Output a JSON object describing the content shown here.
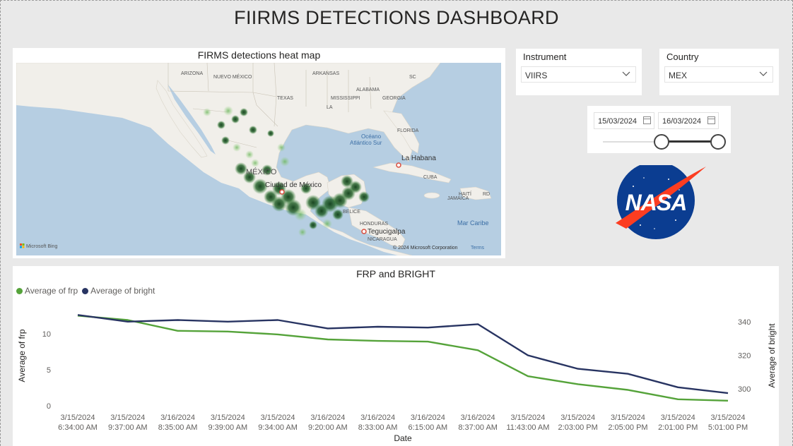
{
  "dashboard": {
    "title": "FIIRMS DETECTIONS DASHBOARD"
  },
  "map": {
    "title": "FIRMS detections heat map",
    "labels": {
      "arizona": "ARIZONA",
      "nuevo_mexico": "NUEVO MÉXICO",
      "arkansas": "ARKANSAS",
      "sc": "SC",
      "texas": "TEXAS",
      "mississippi": "MISSISSIPPI",
      "alabama": "ALABAMA",
      "georgia": "GEORGIA",
      "la": "LA",
      "florida": "FLORIDA",
      "oceano": "Océano",
      "atlantico": "Atlántico Sur",
      "la_habana": "La Habana",
      "mexico": "MÉXICO",
      "ciudad_mexico": "Ciudad de México",
      "cuba": "CUBA",
      "haiti": "HAITÍ",
      "rd": "RD",
      "jamaica": "JAMAICA",
      "belice": "BELICE",
      "honduras": "HONDURAS",
      "tegucigalpa": "Tegucigalpa",
      "nicaragua": "NICARAGUA",
      "mar_caribe": "Mar Caribe"
    },
    "bing_logo": "Microsoft Bing",
    "copyright": "© 2024 Microsoft Corporation",
    "terms": "Terms"
  },
  "instrument": {
    "label": "Instrument",
    "value": "VIIRS"
  },
  "country": {
    "label": "Country",
    "value": "MEX"
  },
  "date_range": {
    "start": "15/03/2024",
    "end": "16/03/2024"
  },
  "logo": {
    "text": "NASA"
  },
  "colors": {
    "frp": "#55a33a",
    "bright": "#283462",
    "ocean": "#b4cde2",
    "land": "#f1efea"
  },
  "chart_data": {
    "type": "line",
    "title": "FRP and BRIGHT",
    "xlabel": "Date",
    "ylabel": "Average of frp",
    "y2label": "Average of bright",
    "categories": [
      [
        "3/15/2024",
        "6:34:00 AM"
      ],
      [
        "3/15/2024",
        "9:37:00 AM"
      ],
      [
        "3/16/2024",
        "8:35:00 AM"
      ],
      [
        "3/15/2024",
        "9:39:00 AM"
      ],
      [
        "3/15/2024",
        "9:34:00 AM"
      ],
      [
        "3/16/2024",
        "9:20:00 AM"
      ],
      [
        "3/16/2024",
        "8:33:00 AM"
      ],
      [
        "3/16/2024",
        "6:15:00 AM"
      ],
      [
        "3/16/2024",
        "8:37:00 AM"
      ],
      [
        "3/15/2024",
        "11:43:00 AM"
      ],
      [
        "3/15/2024",
        "2:03:00 PM"
      ],
      [
        "3/15/2024",
        "2:05:00 PM"
      ],
      [
        "3/15/2024",
        "2:01:00 PM"
      ],
      [
        "3/15/2024",
        "5:01:00 PM"
      ]
    ],
    "series": [
      {
        "name": "Average of frp",
        "axis": "left",
        "values": [
          12.5,
          11.9,
          10.4,
          10.3,
          9.9,
          9.2,
          9.0,
          8.9,
          7.7,
          4.1,
          3.0,
          2.2,
          0.9,
          0.7
        ]
      },
      {
        "name": "Average of bright",
        "axis": "right",
        "values": [
          344,
          340,
          341,
          340,
          341,
          336,
          337,
          336.5,
          338.5,
          320,
          312,
          309,
          301,
          297.5
        ]
      }
    ],
    "yticks": [
      0,
      5,
      10
    ],
    "y2ticks": [
      300,
      320,
      340
    ],
    "ylim": [
      0,
      14
    ],
    "y2lim": [
      290,
      350
    ],
    "legend_position": "top-left"
  }
}
